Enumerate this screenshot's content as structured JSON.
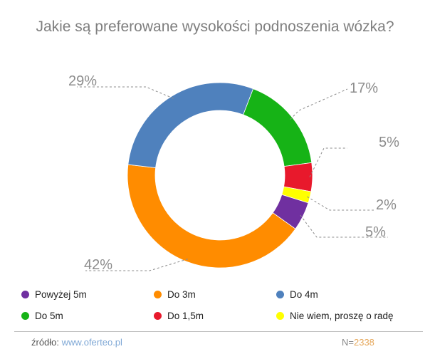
{
  "chart_data": {
    "type": "pie",
    "style": "donut",
    "title": "Jakie są preferowane wysokości podnoszenia wózka?",
    "series": [
      {
        "name": "Powyżej 5m",
        "value": 5,
        "label": "5%",
        "color": "#7030a0"
      },
      {
        "name": "Do 3m",
        "value": 42,
        "label": "42%",
        "color": "#ff8c00"
      },
      {
        "name": "Do 4m",
        "value": 29,
        "label": "29%",
        "color": "#4f81bd"
      },
      {
        "name": "Do 5m",
        "value": 17,
        "label": "17%",
        "color": "#16b316"
      },
      {
        "name": "Do 1,5m",
        "value": 5,
        "label": "5%",
        "color": "#e8192c"
      },
      {
        "name": "Nie wiem, proszę o radę",
        "value": 2,
        "label": "2%",
        "color": "#ffff00"
      }
    ],
    "legend_position": "bottom"
  },
  "footer": {
    "source_label": "źródło:",
    "source_link": "www.oferteo.pl",
    "n_label": "N=",
    "n_value": "2338"
  }
}
